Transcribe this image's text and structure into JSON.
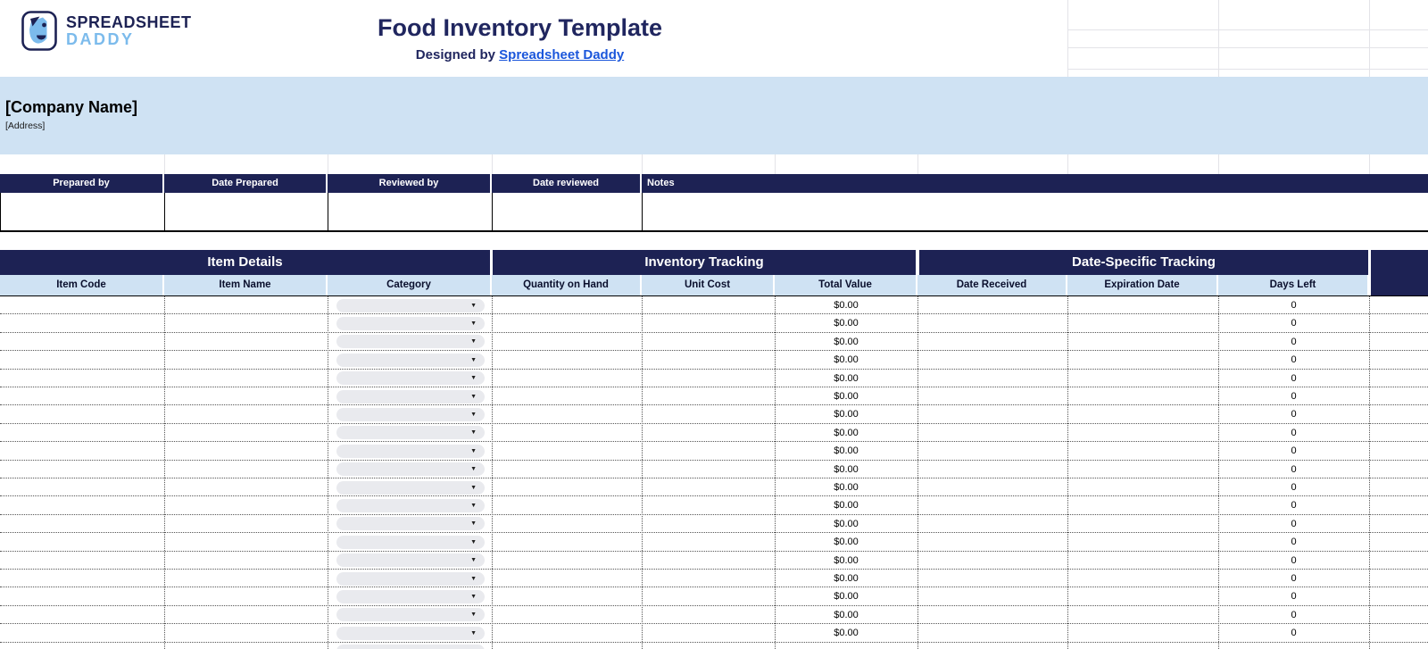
{
  "header": {
    "logo_line1": "SPREADSHEET",
    "logo_line2": "DADDY",
    "title": "Food Inventory Template",
    "designed_by_prefix": "Designed by ",
    "designed_by_link": "Spreadsheet Daddy"
  },
  "company": {
    "name": "[Company Name]",
    "address": "[Address]"
  },
  "prepared_table": {
    "headers": [
      "Prepared by",
      "Date Prepared",
      "Reviewed by",
      "Date reviewed",
      "Notes"
    ]
  },
  "main_table": {
    "sections": [
      "Item Details",
      "Inventory Tracking",
      "Date-Specific Tracking"
    ],
    "columns": [
      "Item Code",
      "Item Name",
      "Category",
      "Quantity on Hand",
      "Unit Cost",
      "Total Value",
      "Date Received",
      "Expiration Date",
      "Days Left"
    ],
    "category_dropdown_icon": "▼",
    "rows": [
      {
        "total_value": "$0.00",
        "days_left": "0"
      },
      {
        "total_value": "$0.00",
        "days_left": "0"
      },
      {
        "total_value": "$0.00",
        "days_left": "0"
      },
      {
        "total_value": "$0.00",
        "days_left": "0"
      },
      {
        "total_value": "$0.00",
        "days_left": "0"
      },
      {
        "total_value": "$0.00",
        "days_left": "0"
      },
      {
        "total_value": "$0.00",
        "days_left": "0"
      },
      {
        "total_value": "$0.00",
        "days_left": "0"
      },
      {
        "total_value": "$0.00",
        "days_left": "0"
      },
      {
        "total_value": "$0.00",
        "days_left": "0"
      },
      {
        "total_value": "$0.00",
        "days_left": "0"
      },
      {
        "total_value": "$0.00",
        "days_left": "0"
      },
      {
        "total_value": "$0.00",
        "days_left": "0"
      },
      {
        "total_value": "$0.00",
        "days_left": "0"
      },
      {
        "total_value": "$0.00",
        "days_left": "0"
      },
      {
        "total_value": "$0.00",
        "days_left": "0"
      },
      {
        "total_value": "$0.00",
        "days_left": "0"
      },
      {
        "total_value": "$0.00",
        "days_left": "0"
      },
      {
        "total_value": "$0.00",
        "days_left": "0"
      }
    ],
    "partial_row_visible": true
  },
  "colors": {
    "navy": "#1d2254",
    "light_blue": "#cfe2f3",
    "link_blue": "#1a56db",
    "logo_blue": "#7cbbec",
    "pill_gray": "#e9eaee"
  }
}
